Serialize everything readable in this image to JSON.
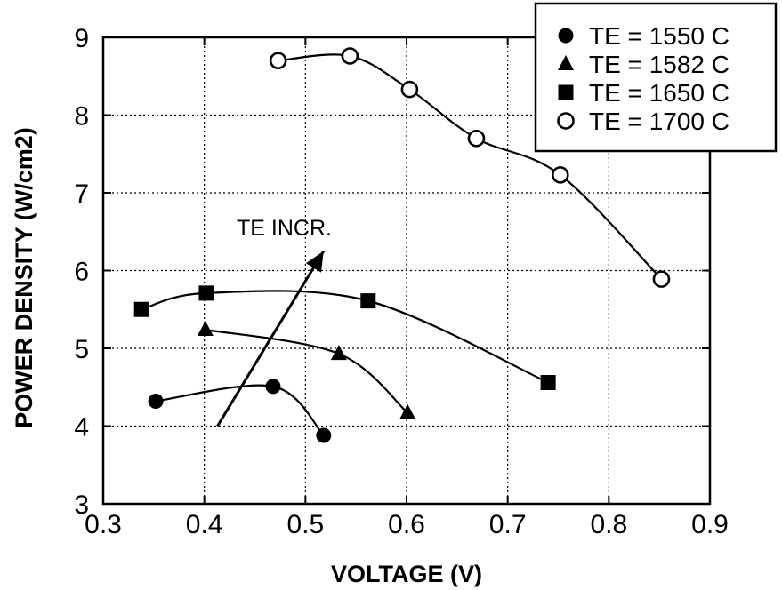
{
  "chart_data": {
    "type": "scatter",
    "title": "",
    "xlabel": "VOLTAGE (V)",
    "ylabel": "POWER DENSITY (W/cm2)",
    "xlim": [
      0.3,
      0.9
    ],
    "ylim": [
      3,
      9
    ],
    "xticks": [
      0.3,
      0.4,
      0.5,
      0.6,
      0.7,
      0.8,
      0.9
    ],
    "xtick_labels": [
      "0.3",
      "0.4",
      "0.5",
      "0.6",
      "0.7",
      "0.8",
      "0.9"
    ],
    "yticks": [
      3,
      4,
      5,
      6,
      7,
      8,
      9
    ],
    "ytick_labels": [
      "3",
      "4",
      "5",
      "6",
      "7",
      "8",
      "9"
    ],
    "grid": true,
    "legend_position": "top-right",
    "series": [
      {
        "name": "TE = 1550 C",
        "marker": "filled-circle",
        "x": [
          0.352,
          0.468,
          0.518
        ],
        "y": [
          4.32,
          4.51,
          3.88
        ]
      },
      {
        "name": "TE = 1582 C",
        "marker": "filled-triangle",
        "x": [
          0.401,
          0.533,
          0.601
        ],
        "y": [
          5.24,
          4.93,
          4.17
        ]
      },
      {
        "name": "TE = 1650 C",
        "marker": "filled-square",
        "x": [
          0.338,
          0.402,
          0.562,
          0.74
        ],
        "y": [
          5.5,
          5.71,
          5.61,
          4.56
        ]
      },
      {
        "name": "TE = 1700 C",
        "marker": "open-circle",
        "x": [
          0.473,
          0.544,
          0.603,
          0.669,
          0.752,
          0.852
        ],
        "y": [
          8.7,
          8.76,
          8.33,
          7.7,
          7.23,
          5.89
        ]
      }
    ],
    "annotations": [
      {
        "text": "TE INCR.",
        "arrow_from": [
          0.413,
          4.0
        ],
        "arrow_to": [
          0.518,
          6.25
        ],
        "text_at": [
          0.432,
          6.45
        ]
      }
    ]
  }
}
